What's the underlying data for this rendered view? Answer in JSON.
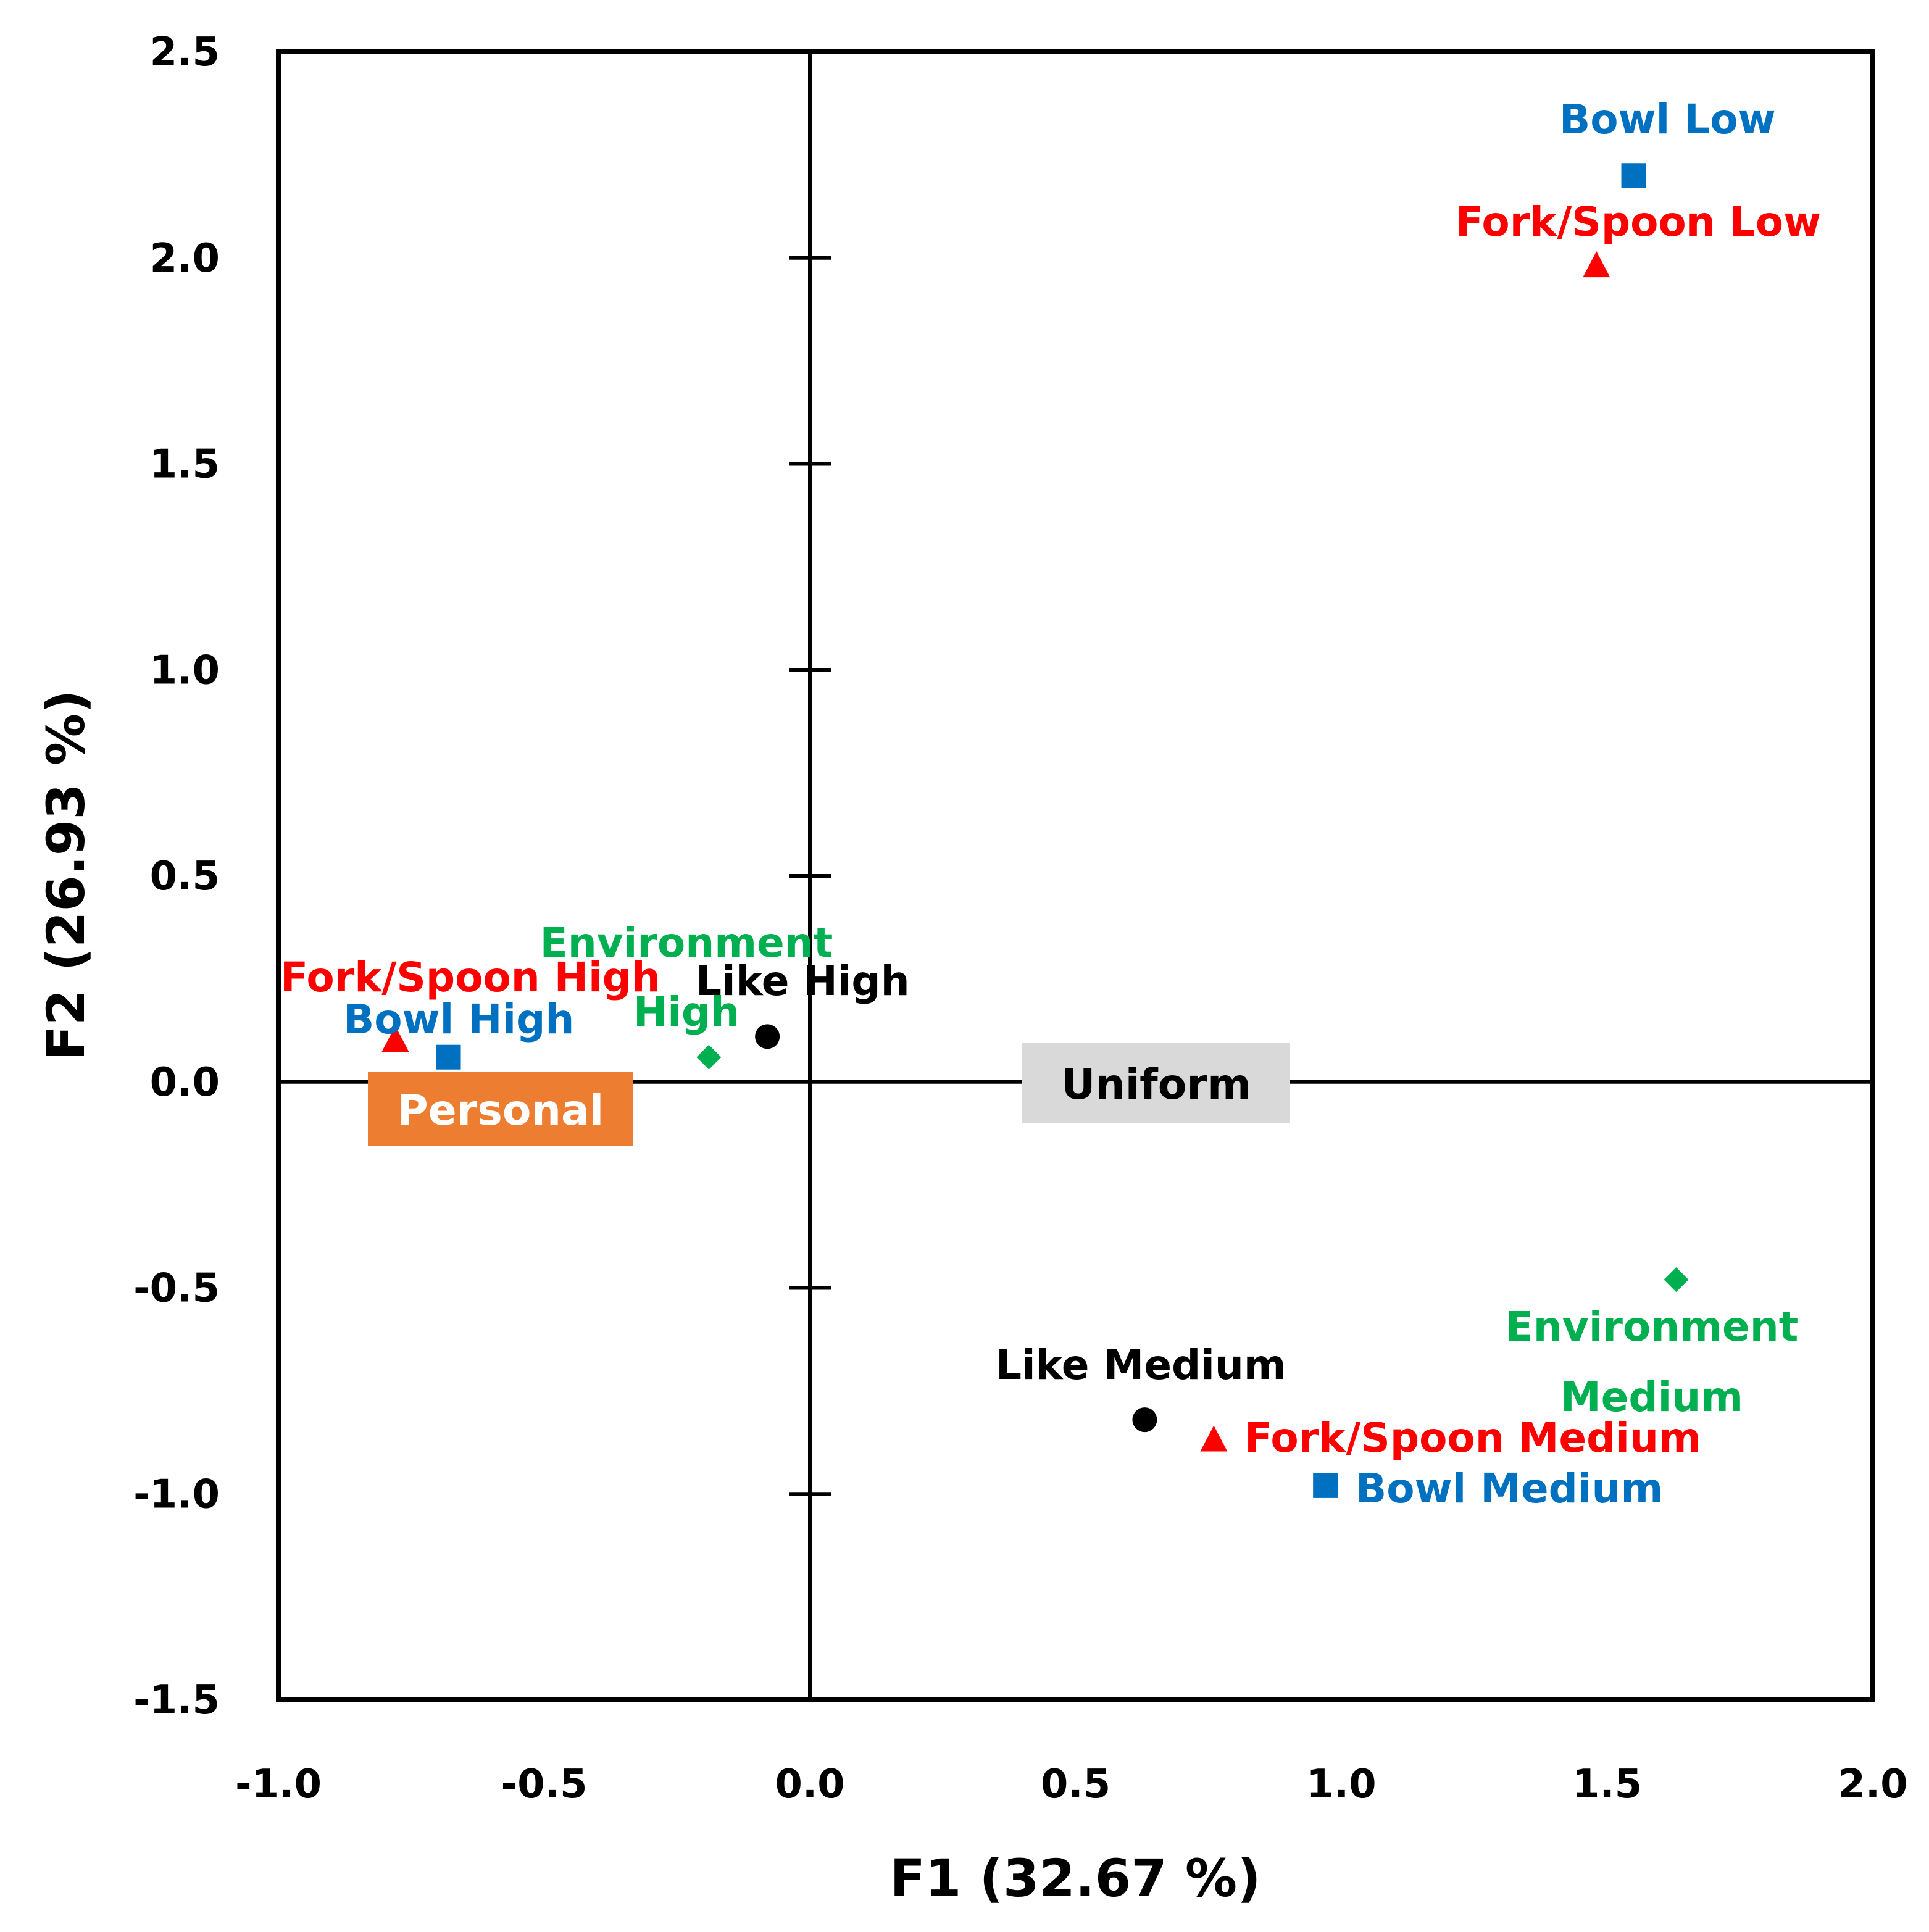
{
  "chart_data": {
    "type": "scatter",
    "title": "",
    "xlabel": "F1 (32.67 %)",
    "ylabel": "F2 (26.93 %)",
    "xlim": [
      -1.0,
      2.0
    ],
    "ylim": [
      -1.5,
      2.5
    ],
    "xticks": [
      "-1.0",
      "-0.5",
      "0.0",
      "0.5",
      "1.0",
      "1.5",
      "2.0"
    ],
    "yticks": [
      "-1.5",
      "-1.0",
      "-0.5",
      "0.0",
      "0.5",
      "1.0",
      "1.5",
      "2.0",
      "2.5"
    ],
    "grid": false,
    "colors": {
      "like": "#000000",
      "bowl": "#0070C0",
      "fork_spoon": "#FF0000",
      "environment": "#00B050",
      "personal_box": "#ED7D31",
      "personal_text": "#FFFFFF",
      "uniform_box": "#D9D9D9",
      "uniform_text": "#000000"
    },
    "series": [
      {
        "name": "Like",
        "marker": "circle",
        "color": "#000000",
        "points": [
          {
            "label": "Like High",
            "x": -0.08,
            "y": 0.11
          },
          {
            "label": "Like Medium",
            "x": 0.63,
            "y": -0.82
          }
        ]
      },
      {
        "name": "Bowl",
        "marker": "square",
        "color": "#0070C0",
        "points": [
          {
            "label": "Bowl High",
            "x": -0.68,
            "y": 0.06
          },
          {
            "label": "Bowl Low",
            "x": 1.55,
            "y": 2.2
          },
          {
            "label": "Bowl Medium",
            "x": 0.97,
            "y": -0.98
          }
        ]
      },
      {
        "name": "Fork/Spoon",
        "marker": "triangle",
        "color": "#FF0000",
        "points": [
          {
            "label": "Fork/Spoon High",
            "x": -0.78,
            "y": 0.1
          },
          {
            "label": "Fork/Spoon Low",
            "x": 1.48,
            "y": 1.98
          },
          {
            "label": "Fork/Spoon Medium",
            "x": 0.76,
            "y": -0.87
          }
        ]
      },
      {
        "name": "Environment",
        "marker": "diamond",
        "color": "#00B050",
        "points": [
          {
            "label": "Environment High",
            "x": -0.19,
            "y": 0.06
          },
          {
            "label": "Environment Medium",
            "x": 1.63,
            "y": -0.48
          }
        ]
      }
    ],
    "annotations": [
      {
        "text": "Personal",
        "kind": "box"
      },
      {
        "text": "Uniform",
        "kind": "box"
      }
    ],
    "label_lines": {
      "environment_high": [
        "Environment",
        "High"
      ],
      "environment_medium": [
        "Environment",
        "Medium"
      ]
    }
  }
}
